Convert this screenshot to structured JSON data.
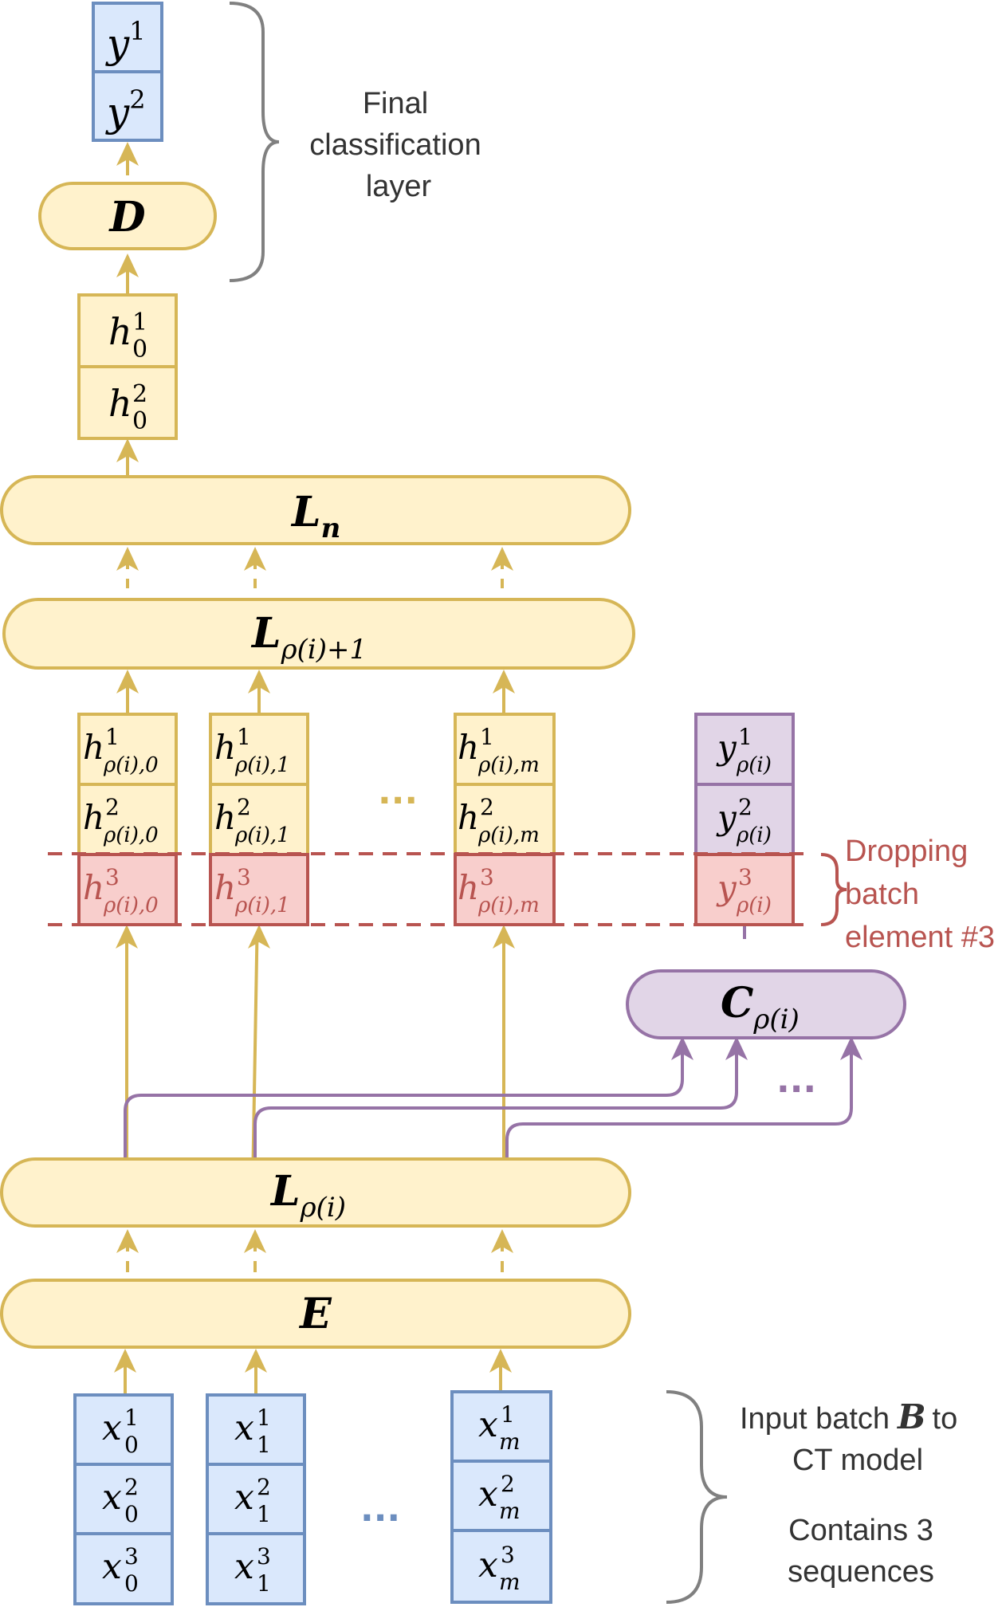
{
  "colors": {
    "yellow_fill": "#fff2cc",
    "yellow_stroke": "#d6b656",
    "blue_fill": "#dae8fc",
    "blue_stroke": "#6c8ebf",
    "red_fill": "#f8cecc",
    "red_stroke": "#b85450",
    "purple_fill": "#e1d5e7",
    "purple_stroke": "#9673a6",
    "brace_gray": "#808080"
  },
  "top_output": {
    "cells": [
      {
        "base": "y",
        "sup": "1"
      },
      {
        "base": "y",
        "sup": "2"
      }
    ]
  },
  "decoder": {
    "label": "D"
  },
  "final_hidden": {
    "cells": [
      {
        "base": "h",
        "sub": "0",
        "sup": "1"
      },
      {
        "base": "h",
        "sub": "0",
        "sup": "2"
      }
    ]
  },
  "layer_n": {
    "base": "L",
    "sub": "n"
  },
  "layer_next": {
    "base": "L",
    "sub": "ρ(i)+1"
  },
  "layer_current": {
    "base": "L",
    "sub": "ρ(i)"
  },
  "embedding": {
    "label": "E"
  },
  "classifier": {
    "base": "C",
    "sub": "ρ(i)"
  },
  "hidden_columns": [
    {
      "cells": [
        {
          "base": "h",
          "sup": "1",
          "sub": "ρ(i),0"
        },
        {
          "base": "h",
          "sup": "2",
          "sub": "ρ(i),0"
        },
        {
          "base": "h",
          "sup": "3",
          "sub": "ρ(i),0"
        }
      ]
    },
    {
      "cells": [
        {
          "base": "h",
          "sup": "1",
          "sub": "ρ(i),1"
        },
        {
          "base": "h",
          "sup": "2",
          "sub": "ρ(i),1"
        },
        {
          "base": "h",
          "sup": "3",
          "sub": "ρ(i),1"
        }
      ]
    },
    {
      "cells": [
        {
          "base": "h",
          "sup": "1",
          "sub": "ρ(i),m"
        },
        {
          "base": "h",
          "sup": "2",
          "sub": "ρ(i),m"
        },
        {
          "base": "h",
          "sup": "3",
          "sub": "ρ(i),m"
        }
      ]
    }
  ],
  "intermediate_output": {
    "cells": [
      {
        "base": "y",
        "sup": "1",
        "sub": "ρ(i)"
      },
      {
        "base": "y",
        "sup": "2",
        "sub": "ρ(i)"
      },
      {
        "base": "y",
        "sup": "3",
        "sub": "ρ(i)"
      }
    ]
  },
  "input_columns": [
    {
      "cells": [
        {
          "base": "x",
          "sup": "1",
          "sub": "0"
        },
        {
          "base": "x",
          "sup": "2",
          "sub": "0"
        },
        {
          "base": "x",
          "sup": "3",
          "sub": "0"
        }
      ]
    },
    {
      "cells": [
        {
          "base": "x",
          "sup": "1",
          "sub": "1"
        },
        {
          "base": "x",
          "sup": "2",
          "sub": "1"
        },
        {
          "base": "x",
          "sup": "3",
          "sub": "1"
        }
      ]
    },
    {
      "cells": [
        {
          "base": "x",
          "sup": "1",
          "sub": "m"
        },
        {
          "base": "x",
          "sup": "2",
          "sub": "m"
        },
        {
          "base": "x",
          "sup": "3",
          "sub": "m"
        }
      ]
    }
  ],
  "ellipsis": "...",
  "annotations": {
    "final_layer": [
      "Final",
      "classification",
      "layer"
    ],
    "dropping": [
      "Dropping",
      "batch",
      "element #3"
    ],
    "input_batch": {
      "line1_prefix": "Input batch",
      "line1_symbol": "B",
      "line1_suffix": "to",
      "line2": "CT model",
      "line3": "Contains 3",
      "line4": "sequences"
    }
  }
}
